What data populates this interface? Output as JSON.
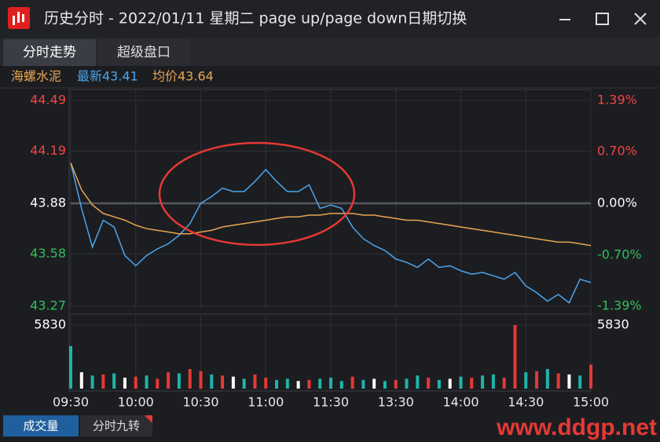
{
  "window": {
    "title": "历史分时 - 2022/01/11 星期二 page up/page down日期切换",
    "tabs": [
      "分时走势",
      "超级盘口"
    ],
    "bottom_tabs": [
      "成交量",
      "分时九转"
    ],
    "watermark": "www.ddgp.net"
  },
  "info": {
    "name": "海螺水泥",
    "latest": "最新43.41",
    "average": "均价43.64"
  },
  "chart_data": [
    {
      "type": "line",
      "x": [
        0,
        5,
        10,
        15,
        20,
        25,
        30,
        35,
        40,
        45,
        50,
        55,
        60,
        65,
        70,
        75,
        80,
        85,
        90,
        95,
        100,
        105,
        110,
        115,
        120,
        125,
        130,
        135,
        140,
        145,
        150,
        155,
        160,
        165,
        170,
        175,
        180,
        185,
        190,
        195,
        200,
        205,
        210,
        215,
        220,
        225,
        230,
        235,
        240
      ],
      "series": [
        {
          "color": "#4ba6ee",
          "values": [
            44.12,
            43.85,
            43.62,
            43.78,
            43.74,
            43.57,
            43.51,
            43.57,
            43.61,
            43.64,
            43.69,
            43.76,
            43.88,
            43.92,
            43.97,
            43.95,
            43.95,
            44.01,
            44.08,
            44.01,
            43.95,
            43.95,
            43.99,
            43.85,
            43.87,
            43.85,
            43.74,
            43.67,
            43.63,
            43.6,
            43.55,
            43.53,
            43.5,
            43.55,
            43.5,
            43.51,
            43.48,
            43.46,
            43.47,
            43.45,
            43.43,
            43.47,
            43.39,
            43.35,
            43.3,
            43.34,
            43.29,
            43.43,
            43.41
          ]
        },
        {
          "color": "#e8a552",
          "values": [
            44.12,
            43.96,
            43.87,
            43.82,
            43.8,
            43.78,
            43.75,
            43.73,
            43.72,
            43.71,
            43.7,
            43.7,
            43.71,
            43.72,
            43.74,
            43.75,
            43.76,
            43.77,
            43.78,
            43.79,
            43.8,
            43.8,
            43.81,
            43.81,
            43.82,
            43.82,
            43.82,
            43.81,
            43.81,
            43.8,
            43.79,
            43.78,
            43.78,
            43.77,
            43.76,
            43.75,
            43.74,
            43.73,
            43.72,
            43.71,
            43.7,
            43.69,
            43.68,
            43.67,
            43.66,
            43.65,
            43.65,
            43.64,
            43.63
          ]
        }
      ],
      "xlim": [
        0,
        240
      ],
      "ylim": [
        43.27,
        44.49
      ],
      "yticks": [
        44.49,
        44.19,
        43.88,
        43.58,
        43.27
      ],
      "y2lim": [
        -1.39,
        1.39
      ],
      "y2ticks": [
        {
          "value": 1.39,
          "label": "1.39%"
        },
        {
          "value": 0.7,
          "label": "0.70%"
        },
        {
          "value": 0,
          "label": "0.00%"
        },
        {
          "value": -0.7,
          "label": "-0.70%"
        },
        {
          "value": -1.39,
          "label": "-1.39%"
        }
      ],
      "grid": true
    },
    {
      "type": "bar",
      "x": [
        0,
        5,
        10,
        15,
        20,
        25,
        30,
        35,
        40,
        45,
        50,
        55,
        60,
        65,
        70,
        75,
        80,
        85,
        90,
        95,
        100,
        105,
        110,
        115,
        120,
        125,
        130,
        135,
        140,
        145,
        150,
        155,
        160,
        165,
        170,
        175,
        180,
        185,
        190,
        195,
        200,
        205,
        210,
        215,
        220,
        225,
        230,
        235,
        240
      ],
      "values": [
        3900,
        1500,
        1200,
        1300,
        1400,
        1000,
        1100,
        1200,
        900,
        1500,
        1400,
        1800,
        1600,
        1300,
        1200,
        1100,
        900,
        1300,
        1000,
        800,
        900,
        700,
        800,
        900,
        1000,
        700,
        1100,
        800,
        900,
        700,
        800,
        900,
        1200,
        1000,
        800,
        900,
        1100,
        1000,
        1200,
        1300,
        1000,
        5830,
        1500,
        1600,
        1800,
        1400,
        1300,
        1200,
        2200
      ],
      "colors": [
        "#1fb5a8",
        "#ffffff",
        "#1fb5a8",
        "#e53935",
        "#1fb5a8",
        "#ffffff",
        "#e53935",
        "#1fb5a8",
        "#e53935",
        "#e53935",
        "#1fb5a8",
        "#e53935",
        "#e53935",
        "#1fb5a8",
        "#e53935",
        "#ffffff",
        "#1fb5a8",
        "#e53935",
        "#e53935",
        "#1fb5a8",
        "#1fb5a8",
        "#ffffff",
        "#e53935",
        "#1fb5a8",
        "#1fb5a8",
        "#1fb5a8",
        "#e53935",
        "#1fb5a8",
        "#ffffff",
        "#1fb5a8",
        "#e53935",
        "#1fb5a8",
        "#1fb5a8",
        "#e53935",
        "#1fb5a8",
        "#ffffff",
        "#1fb5a8",
        "#e53935",
        "#1fb5a8",
        "#1fb5a8",
        "#e53935",
        "#e53935",
        "#1fb5a8",
        "#e53935",
        "#1fb5a8",
        "#e53935",
        "#ffffff",
        "#1fb5a8",
        "#e53935"
      ],
      "xlim": [
        0,
        240
      ],
      "xticks": [
        {
          "value": 0,
          "label": "09:30"
        },
        {
          "value": 30,
          "label": "10:00"
        },
        {
          "value": 60,
          "label": "10:30"
        },
        {
          "value": 90,
          "label": "11:00"
        },
        {
          "value": 120,
          "label": "11:30"
        },
        {
          "value": 150,
          "label": "13:30"
        },
        {
          "value": 180,
          "label": "14:00"
        },
        {
          "value": 210,
          "label": "14:30"
        },
        {
          "value": 240,
          "label": "15:00"
        }
      ],
      "ylim": [
        0,
        5830
      ],
      "yticks": [
        5830
      ],
      "grid": true
    }
  ]
}
